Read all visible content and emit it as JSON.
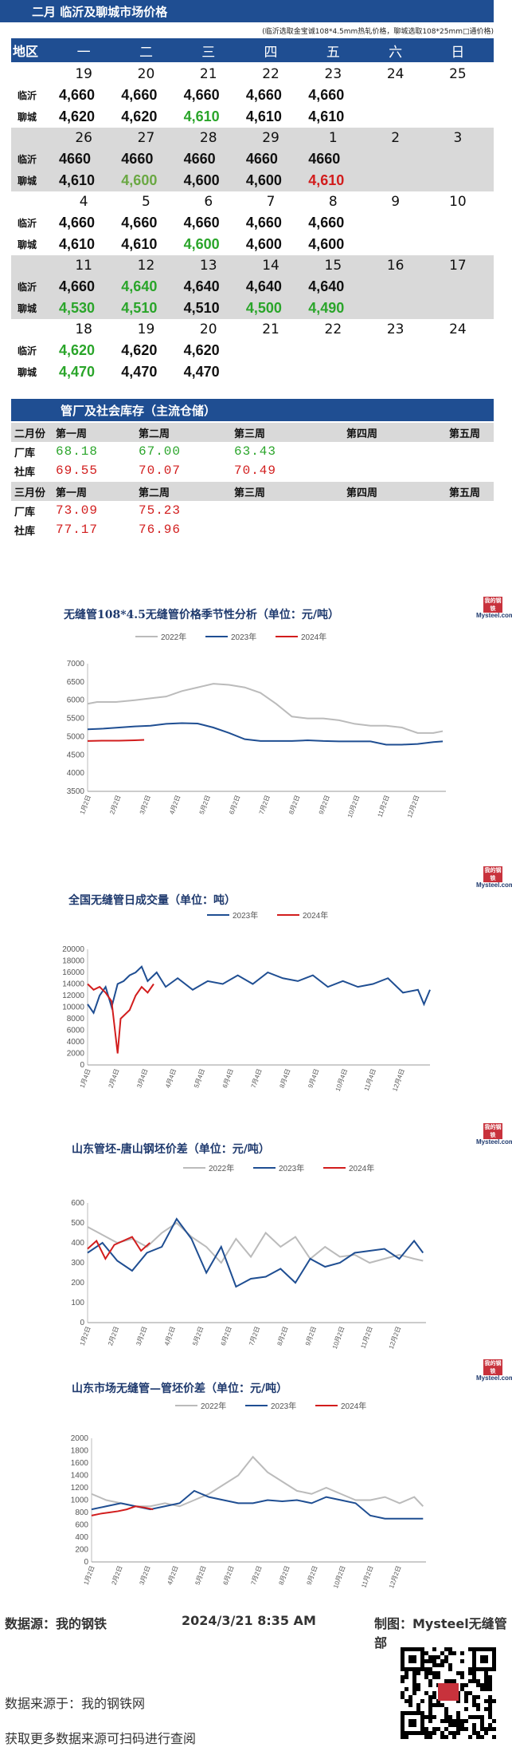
{
  "price": {
    "title": "二月 临沂及聊城市场价格",
    "note": "(临沂选取金宝诚108*4.5mm热轧价格，聊城选取108*25mm□通价格)",
    "header": [
      "地区",
      "一",
      "二",
      "三",
      "四",
      "五",
      "六",
      "日"
    ],
    "city_a": "临沂",
    "city_b": "聊城",
    "weeks": [
      {
        "days": [
          "19",
          "20",
          "21",
          "22",
          "23",
          "24",
          "25"
        ],
        "a": [
          [
            "4,660",
            "k"
          ],
          [
            "4,660",
            "k"
          ],
          [
            "4,660",
            "k"
          ],
          [
            "4,660",
            "k"
          ],
          [
            "4,660",
            "k"
          ],
          [
            "",
            ""
          ],
          [
            "",
            ""
          ]
        ],
        "b": [
          [
            "4,620",
            "k"
          ],
          [
            "4,620",
            "k"
          ],
          [
            "4,610",
            "g"
          ],
          [
            "4,610",
            "k"
          ],
          [
            "4,610",
            "k"
          ],
          [
            "",
            ""
          ],
          [
            "",
            ""
          ]
        ]
      },
      {
        "days": [
          "26",
          "27",
          "28",
          "29",
          "1",
          "2",
          "3"
        ],
        "a": [
          [
            "4660",
            "k"
          ],
          [
            "4660",
            "k"
          ],
          [
            "4660",
            "k"
          ],
          [
            "4660",
            "k"
          ],
          [
            "4660",
            "k"
          ],
          [
            "",
            ""
          ],
          [
            "",
            ""
          ]
        ],
        "b": [
          [
            "4,610",
            "k"
          ],
          [
            "4,600",
            "gd"
          ],
          [
            "4,600",
            "k"
          ],
          [
            "4,600",
            "k"
          ],
          [
            "4,610",
            "r"
          ],
          [
            "",
            ""
          ],
          [
            "",
            ""
          ]
        ]
      },
      {
        "days": [
          "4",
          "5",
          "6",
          "7",
          "8",
          "9",
          "10"
        ],
        "a": [
          [
            "4,660",
            "k"
          ],
          [
            "4,660",
            "k"
          ],
          [
            "4,660",
            "k"
          ],
          [
            "4,660",
            "k"
          ],
          [
            "4,660",
            "k"
          ],
          [
            "",
            ""
          ],
          [
            "",
            ""
          ]
        ],
        "b": [
          [
            "4,610",
            "k"
          ],
          [
            "4,610",
            "k"
          ],
          [
            "4,600",
            "g"
          ],
          [
            "4,600",
            "k"
          ],
          [
            "4,600",
            "k"
          ],
          [
            "",
            ""
          ],
          [
            "",
            ""
          ]
        ]
      },
      {
        "days": [
          "11",
          "12",
          "13",
          "14",
          "15",
          "16",
          "17"
        ],
        "a": [
          [
            "4,660",
            "k"
          ],
          [
            "4,640",
            "g"
          ],
          [
            "4,640",
            "k"
          ],
          [
            "4,640",
            "k"
          ],
          [
            "4,640",
            "k"
          ],
          [
            "",
            ""
          ],
          [
            "",
            ""
          ]
        ],
        "b": [
          [
            "4,530",
            "g"
          ],
          [
            "4,510",
            "g"
          ],
          [
            "4,510",
            "k"
          ],
          [
            "4,500",
            "g"
          ],
          [
            "4,490",
            "g"
          ],
          [
            "",
            ""
          ],
          [
            "",
            ""
          ]
        ]
      },
      {
        "days": [
          "18",
          "19",
          "20",
          "21",
          "22",
          "23",
          "24"
        ],
        "a": [
          [
            "4,620",
            "g"
          ],
          [
            "4,620",
            "k"
          ],
          [
            "4,620",
            "k"
          ],
          [
            "",
            ""
          ],
          [
            "",
            ""
          ],
          [
            "",
            ""
          ],
          [
            "",
            ""
          ]
        ],
        "b": [
          [
            "4,470",
            "g"
          ],
          [
            "4,470",
            "k"
          ],
          [
            "4,470",
            "k"
          ],
          [
            "",
            ""
          ],
          [
            "",
            ""
          ],
          [
            "",
            ""
          ],
          [
            "",
            ""
          ]
        ]
      }
    ]
  },
  "inventory": {
    "title": "管厂及社会库存（主流仓储）",
    "feb": "二月份",
    "mar": "三月份",
    "weeks": [
      "第一周",
      "第二周",
      "第三周",
      "第四周",
      "第五周"
    ],
    "factory": "厂库",
    "social": "社库",
    "feb_factory": [
      "68.18",
      "67.00",
      "63.43"
    ],
    "feb_social": [
      "69.55",
      "70.07",
      "70.49"
    ],
    "mar_factory": [
      "73.09",
      "75.23"
    ],
    "mar_social": [
      "77.17",
      "76.96"
    ],
    "colors": {
      "down": "#2aa52a",
      "up": "#d21d1d"
    }
  },
  "logo": {
    "top": "我的钢铁",
    "bottom": "Mysteel.com"
  },
  "footer": {
    "source": "数据源：我的钢铁",
    "datetime": "2024/3/21 8:35 AM",
    "maker": "制图：Mysteel无缝管部",
    "source2": "数据来源于：我的钢铁网",
    "more": "获取更多数据来源可扫码进行查阅"
  },
  "chart_data": [
    {
      "type": "line",
      "title": "无缝管108*4.5无缝管价格季节性分析（单位：元/吨）",
      "ylim": [
        3500,
        7000
      ],
      "yticks": [
        3500,
        4000,
        4500,
        5000,
        5500,
        6000,
        6500,
        7000
      ],
      "xticks": [
        "1月2日",
        "2月2日",
        "3月2日",
        "4月2日",
        "5月2日",
        "6月2日",
        "7月2日",
        "8月2日",
        "9月2日",
        "10月2日",
        "11月2日",
        "12月2日"
      ],
      "series": [
        {
          "name": "2022年",
          "color": "#bbbbbb",
          "x": [
            0,
            0.3,
            0.9,
            1.5,
            2.0,
            2.5,
            3.0,
            3.5,
            4.0,
            4.5,
            5.0,
            5.5,
            6.0,
            6.5,
            7.0,
            7.5,
            8.0,
            8.5,
            9.0,
            9.5,
            10.0,
            10.5,
            11.0,
            11.3
          ],
          "values": [
            5900,
            5950,
            5950,
            6000,
            6050,
            6100,
            6250,
            6350,
            6450,
            6420,
            6350,
            6200,
            5900,
            5550,
            5500,
            5500,
            5450,
            5350,
            5300,
            5300,
            5250,
            5100,
            5100,
            5150
          ]
        },
        {
          "name": "2023年",
          "color": "#1f4e92",
          "x": [
            0,
            0.5,
            1.0,
            1.5,
            2.0,
            2.5,
            3.0,
            3.5,
            4.0,
            4.5,
            5.0,
            5.5,
            6.0,
            6.5,
            7.0,
            7.5,
            8.0,
            8.5,
            9.0,
            9.5,
            10.0,
            10.5,
            11.0,
            11.3
          ],
          "values": [
            5200,
            5220,
            5250,
            5280,
            5300,
            5350,
            5370,
            5360,
            5250,
            5100,
            4930,
            4880,
            4880,
            4880,
            4900,
            4880,
            4870,
            4870,
            4870,
            4780,
            4780,
            4800,
            4850,
            4870
          ]
        },
        {
          "name": "2024年",
          "color": "#d21d1d",
          "x": [
            0,
            0.5,
            1.0,
            1.5,
            1.8
          ],
          "values": [
            4880,
            4890,
            4890,
            4900,
            4910
          ]
        }
      ]
    },
    {
      "type": "line",
      "title": "全国无缝管日成交量（单位：吨）",
      "ylim": [
        0,
        20000
      ],
      "yticks": [
        0,
        2000,
        4000,
        6000,
        8000,
        10000,
        12000,
        14000,
        16000,
        18000,
        20000
      ],
      "xticks": [
        "1月4日",
        "2月4日",
        "3月4日",
        "4月4日",
        "5月4日",
        "6月4日",
        "7月4日",
        "8月4日",
        "9月4日",
        "10月4日",
        "11月4日",
        "12月4日"
      ],
      "series": [
        {
          "name": "2023年",
          "color": "#1f4e92",
          "x": [
            0,
            0.2,
            0.4,
            0.6,
            0.8,
            1.0,
            1.2,
            1.4,
            1.6,
            1.8,
            2.0,
            2.3,
            2.6,
            3.0,
            3.5,
            4.0,
            4.5,
            5.0,
            5.5,
            6.0,
            6.5,
            7.0,
            7.5,
            8.0,
            8.5,
            9.0,
            9.5,
            10.0,
            10.5,
            11.0,
            11.2,
            11.4
          ],
          "values": [
            10500,
            9000,
            12000,
            13500,
            10000,
            14000,
            14500,
            15500,
            16000,
            17000,
            14500,
            16000,
            13500,
            15000,
            13000,
            14500,
            14000,
            15500,
            14000,
            16000,
            15000,
            14500,
            15500,
            13500,
            14500,
            13500,
            14000,
            15000,
            12500,
            13000,
            10500,
            13000
          ]
        },
        {
          "name": "2024年",
          "color": "#d21d1d",
          "x": [
            0,
            0.2,
            0.4,
            0.6,
            0.8,
            1.0,
            1.1,
            1.2,
            1.4,
            1.6,
            1.8,
            2.0,
            2.2
          ],
          "values": [
            14000,
            13000,
            13500,
            12500,
            11000,
            2000,
            8000,
            8500,
            9500,
            12000,
            13500,
            12500,
            14000
          ]
        }
      ]
    },
    {
      "type": "line",
      "title": "山东管坯-唐山钢坯价差（单位：元/吨）",
      "ylim": [
        0,
        600
      ],
      "yticks": [
        0,
        100,
        200,
        300,
        400,
        500,
        600
      ],
      "xticks": [
        "1月2日",
        "2月2日",
        "3月2日",
        "4月2日",
        "5月2日",
        "6月2日",
        "7月2日",
        "8月2日",
        "9月2日",
        "10月2日",
        "11月2日",
        "12月2日"
      ],
      "series": [
        {
          "name": "2022年",
          "color": "#bbbbbb",
          "x": [
            0,
            0.5,
            1.0,
            1.5,
            2.0,
            2.5,
            3.0,
            3.5,
            4.0,
            4.5,
            5.0,
            5.5,
            6.0,
            6.5,
            7.0,
            7.5,
            8.0,
            8.5,
            9.0,
            9.5,
            10.0,
            10.5,
            11.0,
            11.3
          ],
          "values": [
            480,
            440,
            400,
            420,
            380,
            450,
            500,
            430,
            380,
            300,
            420,
            330,
            450,
            380,
            430,
            320,
            380,
            330,
            340,
            300,
            320,
            340,
            320,
            310
          ]
        },
        {
          "name": "2023年",
          "color": "#1f4e92",
          "x": [
            0,
            0.5,
            1.0,
            1.5,
            2.0,
            2.5,
            3.0,
            3.5,
            4.0,
            4.5,
            5.0,
            5.5,
            6.0,
            6.5,
            7.0,
            7.5,
            8.0,
            8.5,
            9.0,
            9.5,
            10.0,
            10.5,
            11.0,
            11.3
          ],
          "values": [
            350,
            400,
            310,
            260,
            350,
            380,
            520,
            420,
            250,
            380,
            180,
            220,
            230,
            270,
            200,
            320,
            280,
            300,
            350,
            360,
            370,
            320,
            410,
            350
          ]
        },
        {
          "name": "2024年",
          "color": "#d21d1d",
          "x": [
            0,
            0.3,
            0.6,
            0.9,
            1.2,
            1.5,
            1.8,
            2.1
          ],
          "values": [
            370,
            410,
            320,
            390,
            410,
            430,
            360,
            400
          ]
        }
      ]
    },
    {
      "type": "line",
      "title": "山东市场无缝管—管坯价差（单位：元/吨）",
      "ylim": [
        0,
        2000
      ],
      "yticks": [
        0,
        200,
        400,
        600,
        800,
        1000,
        1200,
        1400,
        1600,
        1800,
        2000
      ],
      "xticks": [
        "1月2日",
        "2月2日",
        "3月2日",
        "4月2日",
        "5月2日",
        "6月2日",
        "7月2日",
        "8月2日",
        "9月2日",
        "10月2日",
        "11月2日",
        "12月2日"
      ],
      "series": [
        {
          "name": "2022年",
          "color": "#bbbbbb",
          "x": [
            0,
            0.5,
            1.0,
            1.5,
            2.0,
            2.5,
            3.0,
            3.5,
            4.0,
            4.5,
            5.0,
            5.5,
            6.0,
            6.5,
            7.0,
            7.5,
            8.0,
            8.5,
            9.0,
            9.5,
            10.0,
            10.5,
            11.0,
            11.3
          ],
          "values": [
            1100,
            1000,
            950,
            900,
            900,
            950,
            900,
            1000,
            1100,
            1250,
            1400,
            1700,
            1450,
            1300,
            1150,
            1100,
            1200,
            1100,
            1000,
            1000,
            1050,
            950,
            1050,
            900
          ]
        },
        {
          "name": "2023年",
          "color": "#1f4e92",
          "x": [
            0,
            0.5,
            1.0,
            1.5,
            2.0,
            2.5,
            3.0,
            3.5,
            4.0,
            4.5,
            5.0,
            5.5,
            6.0,
            6.5,
            7.0,
            7.5,
            8.0,
            8.5,
            9.0,
            9.5,
            10.0,
            10.5,
            11.0,
            11.3
          ],
          "values": [
            850,
            900,
            950,
            900,
            850,
            900,
            950,
            1150,
            1050,
            1000,
            950,
            950,
            1000,
            980,
            1000,
            950,
            1050,
            1000,
            950,
            750,
            700,
            700,
            700,
            700
          ]
        },
        {
          "name": "2024年",
          "color": "#d21d1d",
          "x": [
            0,
            0.3,
            0.6,
            0.9,
            1.2,
            1.5,
            1.8,
            2.1
          ],
          "values": [
            750,
            780,
            800,
            820,
            850,
            900,
            880,
            850
          ]
        }
      ]
    }
  ]
}
